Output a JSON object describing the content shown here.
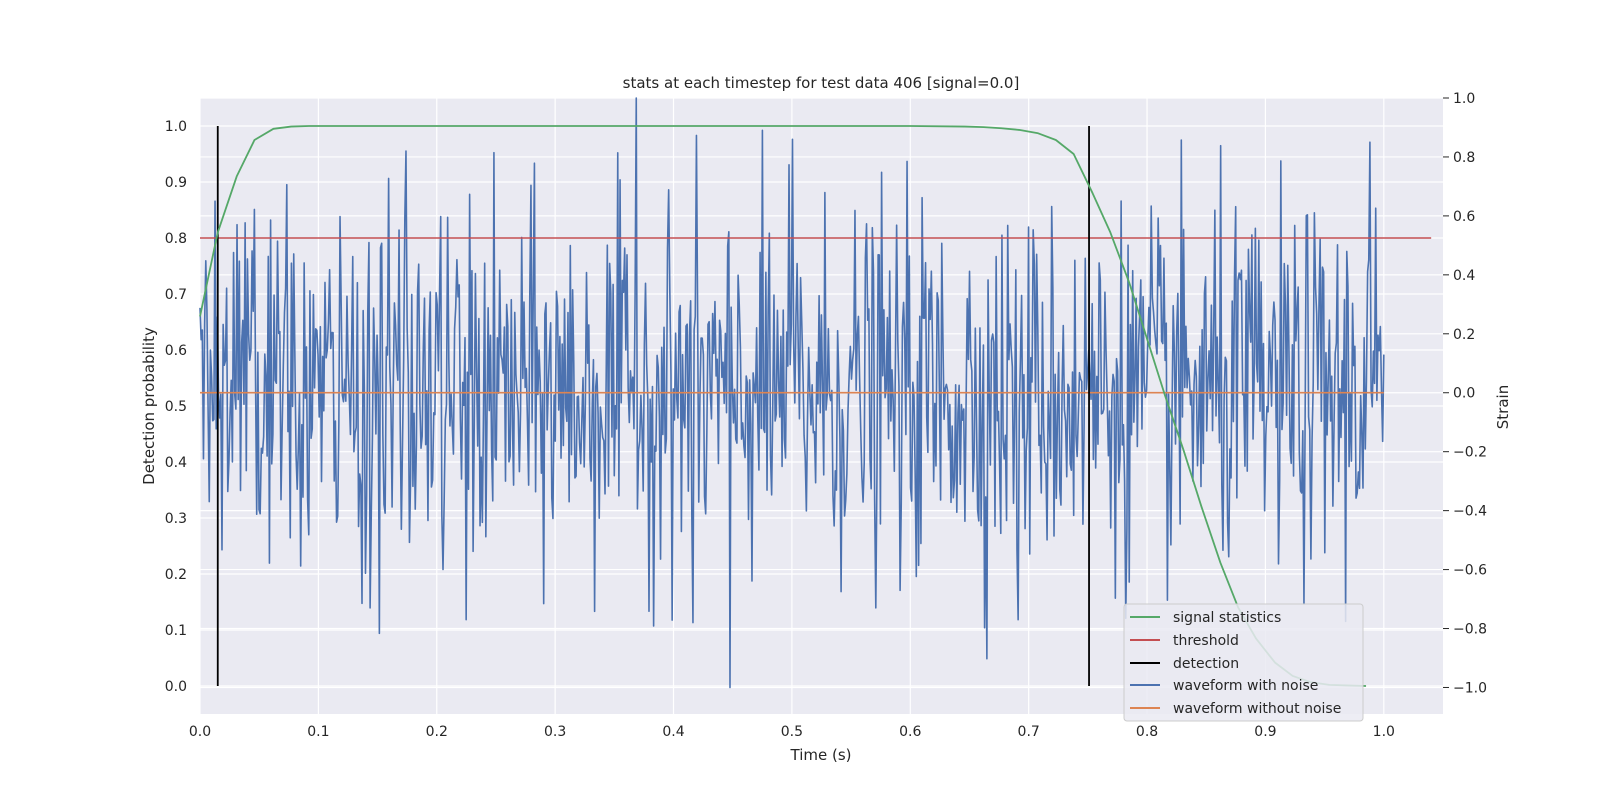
{
  "chart_data": {
    "type": "line",
    "title": "stats at each timestep for test data 406 [signal=0.0]",
    "xlabel": "Time (s)",
    "ylabel": "Detection probability",
    "y2label": "Strain",
    "xlim": [
      0.0,
      1.05
    ],
    "ylim": [
      -0.05,
      1.05
    ],
    "y2lim": [
      -1.09,
      1.0
    ],
    "x_ticks": [
      "0.0",
      "0.1",
      "0.2",
      "0.3",
      "0.4",
      "0.5",
      "0.6",
      "0.7",
      "0.8",
      "0.9",
      "1.0"
    ],
    "y_ticks": [
      "0.0",
      "0.1",
      "0.2",
      "0.3",
      "0.4",
      "0.5",
      "0.6",
      "0.7",
      "0.8",
      "0.9",
      "1.0"
    ],
    "y2_ticks": [
      "−1.0",
      "−0.8",
      "−0.6",
      "−0.4",
      "−0.2",
      "0.0",
      "0.2",
      "0.4",
      "0.6",
      "0.8",
      "1.0"
    ],
    "grid": true,
    "legend_position": "lower-right",
    "signal_statistics": {
      "name": "signal statistics",
      "color": "#55a868",
      "x": [
        0.0,
        0.015,
        0.031,
        0.046,
        0.062,
        0.077,
        0.092,
        0.108,
        0.2,
        0.4,
        0.6,
        0.646,
        0.662,
        0.677,
        0.692,
        0.708,
        0.723,
        0.738,
        0.754,
        0.769,
        0.785,
        0.8,
        0.815,
        0.831,
        0.846,
        0.862,
        0.877,
        0.892,
        0.908,
        0.923,
        0.938,
        0.954,
        0.969,
        0.985
      ],
      "y": [
        0.66,
        0.81,
        0.91,
        0.975,
        0.995,
        0.999,
        1.0,
        1.0,
        1.0,
        1.0,
        1.0,
        0.999,
        0.998,
        0.996,
        0.993,
        0.987,
        0.975,
        0.95,
        0.88,
        0.81,
        0.72,
        0.62,
        0.52,
        0.42,
        0.32,
        0.22,
        0.14,
        0.085,
        0.042,
        0.018,
        0.007,
        0.002,
        0.001,
        0.0
      ]
    },
    "threshold": {
      "name": "threshold",
      "color": "#c44e52",
      "y": 0.8,
      "x_range": [
        0.0,
        1.04
      ]
    },
    "detection": {
      "name": "detection",
      "color": "#000000",
      "x": [
        0.015,
        0.751
      ],
      "y_range": [
        0.0,
        1.0
      ]
    },
    "waveform_with_noise": {
      "name": "waveform with noise",
      "color": "#4c72b0",
      "x_range": [
        0.0,
        1.0
      ],
      "samples": 1024,
      "std": 0.3,
      "peaks": [
        {
          "x": 0.013,
          "y": 0.65
        },
        {
          "x": 0.174,
          "y": 0.82
        },
        {
          "x": 0.369,
          "y": 1.0
        },
        {
          "x": 0.5,
          "y": 0.86
        },
        {
          "x": 0.988,
          "y": 0.85
        },
        {
          "x": 0.144,
          "y": -0.73
        },
        {
          "x": 0.225,
          "y": -0.77
        },
        {
          "x": 0.416,
          "y": -0.78
        },
        {
          "x": 0.448,
          "y": -1.0
        },
        {
          "x": 0.691,
          "y": -0.77
        }
      ]
    },
    "waveform_without_noise": {
      "name": "waveform without noise",
      "color": "#dd8452",
      "y": 0.0,
      "x_range": [
        0.0,
        1.0
      ]
    }
  }
}
